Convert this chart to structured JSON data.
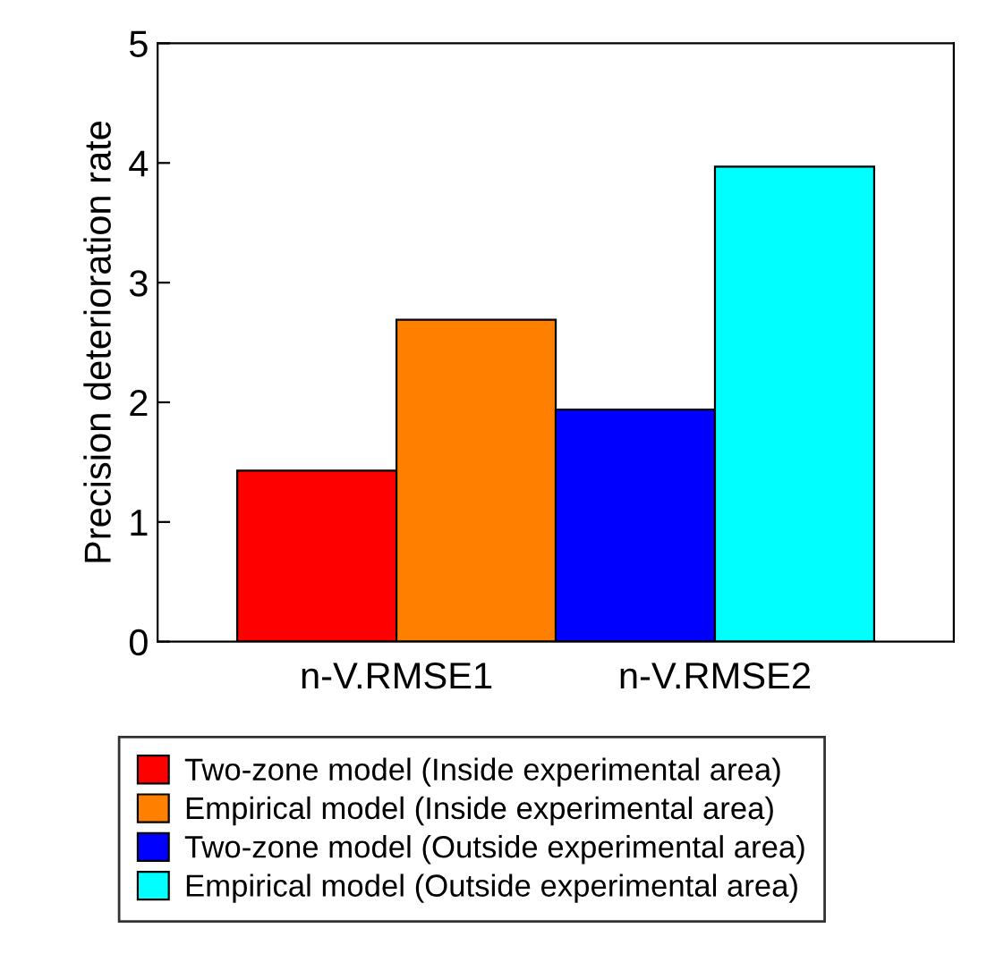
{
  "chart_data": {
    "type": "bar",
    "ylabel": "Precision deterioration rate",
    "categories": [
      "n-V.RMSE1",
      "n-V.RMSE2"
    ],
    "series": [
      {
        "name": "Two-zone model (Inside experimental area)",
        "color": "#ff0000",
        "values": [
          1.43,
          null
        ]
      },
      {
        "name": "Empirical model (Inside experimental area)",
        "color": "#ff8000",
        "values": [
          2.69,
          null
        ]
      },
      {
        "name": "Two-zone model (Outside experimental area)",
        "color": "#0000ff",
        "values": [
          null,
          1.94
        ]
      },
      {
        "name": "Empirical model (Outside experimental area)",
        "color": "#00ffff",
        "values": [
          null,
          3.97
        ]
      }
    ],
    "ylim": [
      0,
      5
    ],
    "yticks": [
      0,
      1,
      2,
      3,
      4,
      5
    ],
    "grid": false,
    "legend": "bottom"
  }
}
